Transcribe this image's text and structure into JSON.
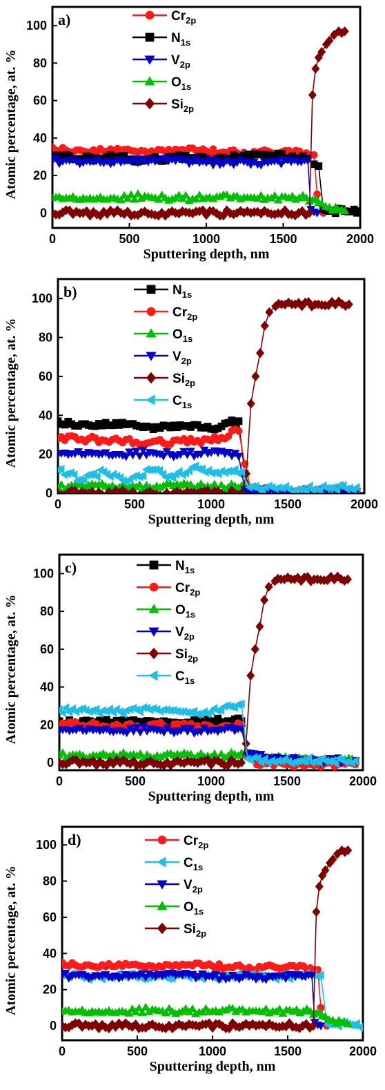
{
  "chart_data": [
    {
      "type": "line",
      "panel_label": "a)",
      "xlabel": "Sputtering depth, nm",
      "ylabel": "Atomic percentage, at. %",
      "xlim": [
        0,
        2000
      ],
      "ylim": [
        -8,
        110
      ],
      "xticks": [
        0,
        500,
        1000,
        1500,
        2000
      ],
      "yticks": [
        0,
        20,
        40,
        60,
        80,
        100
      ],
      "legend_position": "top-center",
      "series": [
        {
          "name": "Cr",
          "sub": "2p",
          "color": "#ff1a1a",
          "marker": "circle",
          "x": [
            0,
            200,
            400,
            600,
            800,
            1000,
            1200,
            1400,
            1650,
            1700,
            1720,
            1760
          ],
          "y": [
            35,
            33,
            33,
            33,
            34,
            33,
            32,
            33,
            32,
            31,
            10,
            0
          ]
        },
        {
          "name": "N",
          "sub": "1s",
          "color": "#000000",
          "marker": "square",
          "x": [
            0,
            200,
            400,
            600,
            800,
            1000,
            1200,
            1400,
            1650,
            1700,
            1730,
            1760,
            1800,
            1900,
            2000
          ],
          "y": [
            30,
            29,
            30,
            28,
            30,
            29,
            30,
            31,
            29,
            26,
            25,
            2,
            1,
            1,
            1
          ]
        },
        {
          "name": "V",
          "sub": "2p",
          "color": "#0000cc",
          "marker": "triangle-down",
          "x": [
            0,
            200,
            400,
            600,
            800,
            1000,
            1200,
            1400,
            1660,
            1680,
            1720
          ],
          "y": [
            28,
            27,
            27,
            28,
            28,
            27,
            27,
            27,
            28,
            2,
            0
          ]
        },
        {
          "name": "O",
          "sub": "1s",
          "color": "#00c000",
          "marker": "triangle-up",
          "x": [
            0,
            200,
            400,
            600,
            800,
            1000,
            1200,
            1400,
            1650,
            1750,
            1800,
            1900
          ],
          "y": [
            8,
            8,
            8,
            9,
            8,
            8,
            9,
            8,
            8,
            5,
            3,
            1
          ]
        },
        {
          "name": "Si",
          "sub": "2p",
          "color": "#800000",
          "marker": "diamond",
          "x": [
            0,
            400,
            800,
            1200,
            1600,
            1670,
            1690,
            1710,
            1730,
            1750,
            1780,
            1800,
            1830,
            1860,
            1900
          ],
          "y": [
            0,
            0,
            0,
            0,
            0,
            0,
            63,
            77,
            83,
            86,
            90,
            92,
            95,
            97,
            97
          ]
        }
      ]
    },
    {
      "type": "line",
      "panel_label": "b)",
      "xlabel": "Sputtering depth, nm",
      "ylabel": "Atomic percentage, at. %",
      "xlim": [
        0,
        2000
      ],
      "ylim": [
        0,
        110
      ],
      "xticks": [
        0,
        500,
        1000,
        1500,
        2000
      ],
      "yticks": [
        0,
        20,
        40,
        60,
        80,
        100
      ],
      "legend_position": "top-center",
      "series": [
        {
          "name": "N",
          "sub": "1s",
          "color": "#000000",
          "marker": "square",
          "x": [
            0,
            200,
            400,
            600,
            800,
            1000,
            1180,
            1220,
            1260,
            1300,
            1500,
            1700,
            1950
          ],
          "y": [
            37,
            35,
            35,
            34,
            35,
            33,
            37,
            10,
            1,
            0,
            0,
            0,
            0
          ]
        },
        {
          "name": "Cr",
          "sub": "2p",
          "color": "#ff1a1a",
          "marker": "circle",
          "x": [
            0,
            200,
            400,
            600,
            800,
            1000,
            1180,
            1220,
            1260,
            1400,
            1600,
            1950
          ],
          "y": [
            28,
            28,
            27,
            26,
            27,
            27,
            32,
            15,
            2,
            1,
            1,
            1
          ]
        },
        {
          "name": "O",
          "sub": "1s",
          "color": "#00c000",
          "marker": "triangle-up",
          "x": [
            0,
            200,
            400,
            600,
            800,
            1000,
            1200,
            1260,
            1500,
            1950
          ],
          "y": [
            3,
            4,
            3,
            3,
            4,
            3,
            4,
            1,
            0,
            0
          ]
        },
        {
          "name": "V",
          "sub": "2p",
          "color": "#0000cc",
          "marker": "triangle-down",
          "x": [
            0,
            200,
            400,
            600,
            800,
            1000,
            1180,
            1220,
            1300,
            1950
          ],
          "y": [
            20,
            21,
            20,
            21,
            20,
            21,
            19,
            2,
            1,
            1
          ]
        },
        {
          "name": "Si",
          "sub": "2p",
          "color": "#800000",
          "marker": "diamond",
          "x": [
            0,
            400,
            800,
            1200,
            1230,
            1260,
            1290,
            1320,
            1350,
            1380,
            1420,
            1460,
            1550,
            1700,
            1900
          ],
          "y": [
            0,
            0,
            0,
            0,
            10,
            46,
            60,
            72,
            86,
            93,
            96,
            97,
            97,
            97,
            97
          ]
        },
        {
          "name": "C",
          "sub": "1s",
          "color": "#1fbfe6",
          "marker": "triangle-left",
          "x": [
            0,
            150,
            300,
            450,
            600,
            750,
            900,
            1050,
            1200,
            1250,
            1400,
            1600,
            1800,
            1950
          ],
          "y": [
            12,
            7,
            11,
            6,
            12,
            8,
            14,
            10,
            11,
            3,
            3,
            2,
            3,
            3
          ]
        }
      ]
    },
    {
      "type": "line",
      "panel_label": "c)",
      "xlabel": "Sputtering depth, nm",
      "ylabel": "Atomic percentage, at. %",
      "xlim": [
        0,
        2000
      ],
      "ylim": [
        -4,
        110
      ],
      "xticks": [
        0,
        500,
        1000,
        1500,
        2000
      ],
      "yticks": [
        0,
        20,
        40,
        60,
        80,
        100
      ],
      "legend_position": "top-center",
      "series": [
        {
          "name": "N",
          "sub": "1s",
          "color": "#000000",
          "marker": "square",
          "x": [
            0,
            200,
            400,
            600,
            800,
            1000,
            1200,
            1240,
            1300,
            1500,
            1700,
            1950
          ],
          "y": [
            22,
            22,
            21,
            22,
            21,
            22,
            22,
            5,
            2,
            1,
            1,
            1
          ]
        },
        {
          "name": "Cr",
          "sub": "2p",
          "color": "#ff1a1a",
          "marker": "circle",
          "x": [
            0,
            200,
            400,
            600,
            800,
            1000,
            1200,
            1240,
            1300,
            1500,
            1700,
            1950
          ],
          "y": [
            20,
            20,
            19,
            20,
            20,
            19,
            20,
            3,
            -1,
            -1,
            -1,
            -1
          ]
        },
        {
          "name": "O",
          "sub": "1s",
          "color": "#00c000",
          "marker": "triangle-up",
          "x": [
            0,
            200,
            400,
            600,
            800,
            1000,
            1200,
            1250,
            1400,
            1600,
            1800,
            1950
          ],
          "y": [
            4,
            3,
            4,
            3,
            4,
            3,
            5,
            4,
            3,
            2,
            2,
            1
          ]
        },
        {
          "name": "V",
          "sub": "2p",
          "color": "#0000cc",
          "marker": "triangle-down",
          "x": [
            0,
            200,
            400,
            600,
            800,
            1000,
            1200,
            1240,
            1350,
            1500,
            1700,
            1950
          ],
          "y": [
            17,
            18,
            17,
            18,
            17,
            17,
            18,
            4,
            3,
            2,
            1,
            1
          ]
        },
        {
          "name": "Si",
          "sub": "2p",
          "color": "#800000",
          "marker": "diamond",
          "x": [
            0,
            400,
            800,
            1200,
            1230,
            1260,
            1290,
            1320,
            1350,
            1380,
            1420,
            1460,
            1550,
            1700,
            1900
          ],
          "y": [
            0,
            0,
            0,
            0,
            10,
            46,
            60,
            72,
            86,
            93,
            96,
            97,
            97,
            97,
            97
          ]
        },
        {
          "name": "C",
          "sub": "1s",
          "color": "#1fbfe6",
          "marker": "triangle-left",
          "x": [
            0,
            200,
            400,
            600,
            800,
            1000,
            1200,
            1240,
            1400,
            1600,
            1800,
            1950
          ],
          "y": [
            28,
            27,
            27,
            28,
            27,
            27,
            31,
            2,
            1,
            1,
            1,
            1
          ]
        }
      ]
    },
    {
      "type": "line",
      "panel_label": "d)",
      "xlabel": "Sputtering depth, nm",
      "ylabel": "Atomic percentage, at. %",
      "xlim": [
        0,
        2000
      ],
      "ylim": [
        -8,
        110
      ],
      "xticks": [
        0,
        500,
        1000,
        1500,
        2000
      ],
      "yticks": [
        0,
        20,
        40,
        60,
        80,
        100
      ],
      "legend_position": "top-center",
      "series": [
        {
          "name": "Cr",
          "sub": "2p",
          "color": "#ff1a1a",
          "marker": "circle",
          "x": [
            0,
            200,
            400,
            600,
            800,
            1000,
            1200,
            1400,
            1650,
            1700,
            1720,
            1760
          ],
          "y": [
            35,
            33,
            33,
            33,
            34,
            33,
            32,
            33,
            32,
            31,
            10,
            0
          ]
        },
        {
          "name": "C",
          "sub": "1s",
          "color": "#1fbfe6",
          "marker": "triangle-left",
          "x": [
            0,
            200,
            400,
            600,
            800,
            1000,
            1200,
            1400,
            1650,
            1720,
            1760,
            1800,
            1900,
            2000
          ],
          "y": [
            28,
            27,
            28,
            27,
            28,
            27,
            28,
            27,
            28,
            28,
            1,
            1,
            1,
            0
          ]
        },
        {
          "name": "V",
          "sub": "2p",
          "color": "#0000cc",
          "marker": "triangle-down",
          "x": [
            0,
            200,
            400,
            600,
            800,
            1000,
            1200,
            1400,
            1660,
            1680,
            1720
          ],
          "y": [
            28,
            27,
            27,
            28,
            28,
            27,
            27,
            27,
            28,
            2,
            0
          ]
        },
        {
          "name": "O",
          "sub": "1s",
          "color": "#00c000",
          "marker": "triangle-up",
          "x": [
            0,
            200,
            400,
            600,
            800,
            1000,
            1200,
            1400,
            1650,
            1750,
            1800,
            1900
          ],
          "y": [
            8,
            8,
            8,
            9,
            8,
            8,
            9,
            8,
            8,
            5,
            3,
            1
          ]
        },
        {
          "name": "Si",
          "sub": "2p",
          "color": "#800000",
          "marker": "diamond",
          "x": [
            0,
            400,
            800,
            1200,
            1600,
            1670,
            1690,
            1710,
            1730,
            1750,
            1780,
            1800,
            1830,
            1860,
            1900
          ],
          "y": [
            0,
            0,
            0,
            0,
            0,
            0,
            63,
            77,
            83,
            86,
            90,
            92,
            95,
            97,
            97
          ]
        }
      ]
    }
  ]
}
